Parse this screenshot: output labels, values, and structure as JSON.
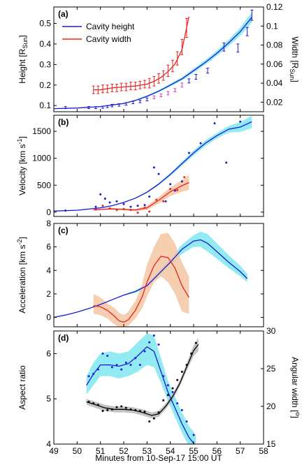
{
  "figure": {
    "xlabel": "Minutes from 10-Sep-17 15:00 UT",
    "xlim": [
      49,
      58
    ],
    "xticks": [
      "49",
      "50",
      "51",
      "52",
      "53",
      "54",
      "55",
      "56",
      "57",
      "58"
    ]
  },
  "colors": {
    "height": "#1a1ad6",
    "width": "#e8231f",
    "height_band": "#7fe8f0",
    "width_band": "#f5c7a3",
    "height_points": "#1a1ad6",
    "width_points_alt": "#d040d0",
    "aspect_line": "#1a1ad6",
    "aspect_band": "#7fe8f0",
    "angular_line": "#000000",
    "angular_band": "#a9a9a9"
  },
  "chart_data": [
    {
      "type": "line",
      "panel": "(a)",
      "ylabel": "Height [R",
      "ylabel_sub": "Sun",
      "ylabel_end": "]",
      "ylim": [
        0.07,
        0.58
      ],
      "yticks": [
        "0.1",
        "0.2",
        "0.3",
        "0.4",
        "0.5"
      ],
      "ytick_values": [
        0.1,
        0.2,
        0.3,
        0.4,
        0.5
      ],
      "y2label": "Width [R",
      "y2label_sub": "Sun",
      "y2label_end": "]",
      "y2lim": [
        0.01,
        0.12
      ],
      "y2ticks": [
        "0.02",
        "0.04",
        "0.06",
        "0.08",
        "0.1",
        "0.12"
      ],
      "y2tick_values": [
        0.02,
        0.04,
        0.06,
        0.08,
        0.1,
        0.12
      ],
      "legend": [
        "Cavity height",
        "Cavity width"
      ],
      "series": [
        {
          "name": "Cavity height",
          "x": [
            49.0,
            50.0,
            51.0,
            52.0,
            52.5,
            53.0,
            53.5,
            54.0,
            54.5,
            55.0,
            55.5,
            56.0,
            56.5,
            57.0,
            57.5
          ],
          "values": [
            0.085,
            0.088,
            0.095,
            0.11,
            0.125,
            0.145,
            0.17,
            0.2,
            0.23,
            0.27,
            0.31,
            0.355,
            0.405,
            0.46,
            0.53
          ],
          "band_low": [
            0.085,
            0.088,
            0.094,
            0.108,
            0.122,
            0.141,
            0.165,
            0.193,
            0.222,
            0.26,
            0.3,
            0.342,
            0.39,
            0.44,
            0.505
          ],
          "band_high": [
            0.085,
            0.088,
            0.096,
            0.112,
            0.128,
            0.149,
            0.175,
            0.207,
            0.238,
            0.28,
            0.322,
            0.368,
            0.42,
            0.48,
            0.555
          ],
          "points_x": [
            49.5,
            50.5,
            50.8,
            51.1,
            51.3,
            51.5,
            51.8,
            52.1,
            52.4,
            52.7,
            53.0,
            53.3,
            53.6,
            53.9,
            54.2,
            54.5,
            54.8,
            55.1,
            55.6,
            56.3,
            56.9,
            57.3,
            57.5
          ],
          "points_y": [
            0.09,
            0.09,
            0.09,
            0.092,
            0.095,
            0.1,
            0.103,
            0.108,
            0.115,
            0.12,
            0.13,
            0.14,
            0.15,
            0.16,
            0.175,
            0.2,
            0.22,
            0.24,
            0.27,
            0.385,
            0.38,
            0.46,
            0.54
          ],
          "points_err": [
            0.005,
            0.005,
            0.005,
            0.005,
            0.005,
            0.006,
            0.006,
            0.006,
            0.006,
            0.006,
            0.007,
            0.007,
            0.007,
            0.008,
            0.008,
            0.01,
            0.01,
            0.012,
            0.012,
            0.02,
            0.02,
            0.02,
            0.025
          ]
        },
        {
          "name": "Cavity width",
          "x": [
            50.7,
            51.0,
            51.5,
            52.0,
            52.5,
            53.0,
            53.3,
            53.6,
            53.9,
            54.2,
            54.5,
            54.8
          ],
          "values": [
            0.033,
            0.033,
            0.035,
            0.036,
            0.037,
            0.039,
            0.042,
            0.046,
            0.052,
            0.06,
            0.075,
            0.11
          ],
          "points_x": [
            50.7,
            50.9,
            51.1,
            51.3,
            51.5,
            51.7,
            51.9,
            52.1,
            52.3,
            52.5,
            52.7,
            52.9,
            53.1,
            53.3,
            53.5,
            53.7,
            53.9,
            54.1,
            54.3,
            54.5,
            54.7
          ],
          "points_y": [
            0.033,
            0.033,
            0.034,
            0.034,
            0.035,
            0.035,
            0.036,
            0.036,
            0.037,
            0.037,
            0.038,
            0.039,
            0.04,
            0.042,
            0.045,
            0.048,
            0.053,
            0.058,
            0.066,
            0.078,
            0.098
          ],
          "points_err": [
            0.004,
            0.004,
            0.004,
            0.004,
            0.004,
            0.004,
            0.004,
            0.004,
            0.004,
            0.004,
            0.004,
            0.004,
            0.005,
            0.005,
            0.005,
            0.005,
            0.006,
            0.006,
            0.007,
            0.008,
            0.01
          ]
        }
      ]
    },
    {
      "type": "line",
      "panel": "(b)",
      "ylabel": "Velocity [km s",
      "ylabel_sup": "-1",
      "ylabel_end": "]",
      "ylim": [
        -80,
        1800
      ],
      "yticks": [
        "0",
        "500",
        "1000",
        "1500"
      ],
      "ytick_values": [
        0,
        500,
        1000,
        1500
      ],
      "series": [
        {
          "name": "Cavity height",
          "x": [
            49.0,
            50.0,
            51.0,
            51.5,
            52.0,
            52.5,
            53.0,
            53.5,
            54.0,
            54.5,
            55.0,
            55.5,
            56.0,
            56.5,
            57.0,
            57.5
          ],
          "values": [
            20,
            35,
            80,
            120,
            180,
            260,
            370,
            520,
            700,
            900,
            1100,
            1280,
            1420,
            1540,
            1580,
            1680
          ],
          "band_low": [
            20,
            35,
            78,
            116,
            174,
            250,
            355,
            500,
            672,
            862,
            1055,
            1230,
            1370,
            1480,
            1490,
            1560
          ],
          "band_high": [
            20,
            35,
            82,
            124,
            186,
            270,
            385,
            540,
            728,
            938,
            1145,
            1330,
            1470,
            1600,
            1670,
            1790
          ],
          "points_x": [
            49.5,
            50.8,
            51.0,
            51.2,
            51.4,
            51.7,
            52.0,
            52.3,
            52.6,
            52.9,
            53.1,
            53.3,
            53.5,
            53.8,
            54.0,
            54.2,
            54.5,
            54.8,
            55.3,
            55.9,
            56.4,
            57.0
          ],
          "points_y": [
            30,
            100,
            330,
            250,
            180,
            200,
            150,
            100,
            120,
            130,
            290,
            830,
            710,
            200,
            520,
            400,
            570,
            1100,
            1280,
            1650,
            920,
            1680
          ]
        },
        {
          "name": "Cavity width",
          "x": [
            50.7,
            51.0,
            51.5,
            52.0,
            52.5,
            53.0,
            53.5,
            54.0,
            54.5,
            54.8
          ],
          "values": [
            40,
            50,
            60,
            50,
            40,
            80,
            220,
            380,
            490,
            550
          ],
          "band_low": [
            30,
            40,
            45,
            35,
            20,
            40,
            160,
            300,
            380,
            410
          ],
          "band_high": [
            50,
            60,
            75,
            65,
            60,
            120,
            280,
            460,
            600,
            690
          ],
          "points_x": [
            50.8,
            51.1,
            51.4,
            51.7,
            52.0,
            52.3,
            52.6,
            52.9,
            53.1,
            53.4,
            53.7,
            54.0,
            54.3,
            54.6
          ],
          "points_y": [
            50,
            120,
            70,
            40,
            60,
            40,
            -10,
            80,
            10,
            230,
            200,
            430,
            410,
            650
          ]
        }
      ]
    },
    {
      "type": "line",
      "panel": "(c)",
      "ylabel": "Acceleration [km s",
      "ylabel_sup": "-2",
      "ylabel_end": "]",
      "ylim": [
        -0.8,
        8
      ],
      "yticks": [
        "0",
        "2",
        "4",
        "6",
        "8"
      ],
      "ytick_values": [
        0,
        2,
        4,
        6,
        8
      ],
      "series": [
        {
          "name": "Cavity height",
          "x": [
            49.0,
            49.5,
            50.0,
            50.5,
            51.0,
            51.5,
            52.0,
            52.5,
            53.0,
            53.5,
            54.0,
            54.5,
            55.0,
            55.3,
            55.6,
            56.0,
            56.5,
            57.0,
            57.3
          ],
          "values": [
            0,
            0.2,
            0.45,
            0.75,
            1.1,
            1.5,
            1.9,
            2.2,
            2.7,
            3.7,
            4.7,
            5.8,
            6.5,
            6.6,
            6.3,
            5.6,
            4.7,
            3.9,
            3.3
          ],
          "band_low": [
            0,
            0.2,
            0.45,
            0.75,
            1.1,
            1.5,
            1.85,
            2.1,
            2.55,
            3.5,
            4.4,
            5.4,
            6.0,
            6.0,
            5.6,
            5.0,
            4.2,
            3.5,
            3.0
          ],
          "band_high": [
            0,
            0.2,
            0.45,
            0.75,
            1.1,
            1.5,
            1.95,
            2.3,
            2.85,
            3.9,
            5.0,
            6.2,
            7.0,
            7.3,
            7.1,
            6.3,
            5.3,
            4.4,
            3.7
          ]
        },
        {
          "name": "Cavity width",
          "x": [
            50.7,
            51.0,
            51.3,
            51.6,
            51.8,
            52.0,
            52.2,
            52.5,
            52.8,
            53.0,
            53.3,
            53.6,
            53.9,
            54.2,
            54.5,
            54.8
          ],
          "values": [
            1.0,
            0.9,
            0.6,
            0.1,
            -0.3,
            -0.4,
            -0.2,
            0.6,
            1.8,
            3.0,
            4.4,
            5.2,
            5.1,
            4.2,
            2.7,
            1.7
          ],
          "band_low": [
            0.3,
            0.2,
            -0.1,
            -0.6,
            -0.8,
            -0.8,
            -0.7,
            -0.1,
            0.8,
            1.8,
            3.0,
            3.5,
            3.0,
            2.0,
            0.5,
            0.3
          ],
          "band_high": [
            2.0,
            1.7,
            1.2,
            0.8,
            0.4,
            0.2,
            0.5,
            1.4,
            2.9,
            4.5,
            6.0,
            7.1,
            7.2,
            6.3,
            4.7,
            3.5
          ]
        }
      ]
    },
    {
      "type": "line",
      "panel": "(d)",
      "ylabel": "Aspect ratio",
      "ylim": [
        4,
        6.5
      ],
      "yticks": [
        "4",
        "5",
        "6"
      ],
      "ytick_values": [
        4,
        5,
        6
      ],
      "y2label": "Angular width [",
      "y2label_sup": "o",
      "y2label_end": "]",
      "y2lim": [
        15,
        30
      ],
      "y2ticks": [
        "15",
        "20",
        "25",
        "30"
      ],
      "y2tick_values": [
        15,
        20,
        25,
        30
      ],
      "series": [
        {
          "name": "Aspect ratio",
          "axis": "left",
          "x": [
            50.4,
            50.7,
            51.0,
            51.4,
            51.8,
            52.2,
            52.6,
            53.0,
            53.3,
            53.6,
            53.9,
            54.2,
            54.5,
            54.8,
            55.1
          ],
          "values": [
            5.3,
            5.55,
            5.75,
            5.75,
            5.72,
            5.78,
            5.95,
            6.15,
            6.05,
            5.6,
            5.15,
            4.8,
            4.45,
            4.15,
            3.95
          ],
          "band_low": [
            5.1,
            5.3,
            5.5,
            5.5,
            5.45,
            5.5,
            5.6,
            5.75,
            5.7,
            5.35,
            4.95,
            4.6,
            4.25,
            3.95,
            3.75
          ],
          "band_high": [
            5.5,
            5.8,
            6.0,
            6.05,
            6.0,
            6.05,
            6.25,
            6.45,
            6.4,
            5.9,
            5.4,
            5.05,
            4.7,
            4.4,
            4.2
          ],
          "points_x": [
            50.5,
            50.7,
            50.9,
            51.1,
            51.3,
            51.5,
            51.7,
            51.9,
            52.1,
            52.3,
            52.5,
            52.7,
            52.9,
            53.1,
            53.3,
            53.5,
            53.7,
            53.9,
            54.1,
            54.3,
            54.5,
            54.7,
            55.0
          ],
          "points_y": [
            5.5,
            5.55,
            5.65,
            6.0,
            5.95,
            5.7,
            5.75,
            5.65,
            5.8,
            5.75,
            5.9,
            5.75,
            6.05,
            6.25,
            6.4,
            6.2,
            5.5,
            5.3,
            5.15,
            4.9,
            4.75,
            4.5,
            4.2
          ]
        },
        {
          "name": "Angular width",
          "axis": "right",
          "x": [
            50.4,
            50.8,
            51.2,
            51.6,
            52.0,
            52.4,
            52.8,
            53.2,
            53.5,
            53.8,
            54.1,
            54.4,
            54.7,
            55.0,
            55.2
          ],
          "values": [
            20.6,
            20.2,
            19.8,
            19.6,
            19.6,
            19.5,
            19.2,
            18.8,
            19.0,
            20.0,
            21.3,
            23.0,
            25.2,
            27.4,
            28.2
          ],
          "band_low": [
            20.2,
            19.8,
            19.4,
            19.2,
            19.2,
            19.1,
            18.8,
            18.4,
            18.6,
            19.6,
            20.9,
            22.6,
            24.7,
            26.7,
            27.3
          ],
          "band_high": [
            21.0,
            20.6,
            20.2,
            20.0,
            20.0,
            19.9,
            19.6,
            19.2,
            19.4,
            20.4,
            21.7,
            23.4,
            25.7,
            28.1,
            29.1
          ],
          "points_x": [
            50.5,
            50.7,
            50.9,
            51.1,
            51.3,
            51.5,
            51.7,
            51.9,
            52.1,
            52.3,
            52.5,
            52.7,
            52.9,
            53.1,
            53.3,
            53.5,
            53.7,
            53.9,
            54.1,
            54.3,
            54.5,
            54.7,
            54.9,
            55.1
          ],
          "points_y": [
            20.6,
            20.4,
            20.2,
            19.4,
            19.5,
            19.6,
            19.9,
            20.0,
            19.8,
            19.6,
            19.5,
            19.4,
            19.3,
            18.0,
            18.4,
            19.2,
            20.8,
            21.5,
            22.4,
            23.5,
            24.6,
            25.5,
            27.0,
            28.4
          ]
        }
      ]
    }
  ]
}
